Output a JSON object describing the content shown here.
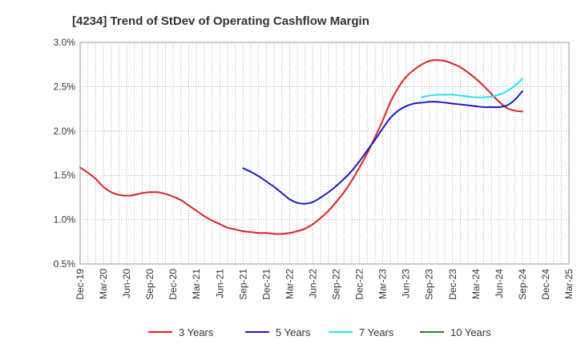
{
  "chart_data": {
    "type": "line",
    "title": "[4234]  Trend of StDev of Operating Cashflow Margin",
    "xlabel": "",
    "ylabel": "",
    "ylim": [
      0.5,
      3.0
    ],
    "yticks": [
      "0.5%",
      "1.0%",
      "1.5%",
      "2.0%",
      "2.5%",
      "3.0%"
    ],
    "ytick_values": [
      0.5,
      1.0,
      1.5,
      2.0,
      2.5,
      3.0
    ],
    "x_ticks": [
      "Dec-19",
      "Mar-20",
      "Jun-20",
      "Sep-20",
      "Dec-20",
      "Mar-21",
      "Jun-21",
      "Sep-21",
      "Dec-21",
      "Mar-22",
      "Jun-22",
      "Sep-22",
      "Dec-22",
      "Mar-23",
      "Jun-23",
      "Sep-23",
      "Dec-23",
      "Mar-24",
      "Jun-24",
      "Sep-24",
      "Dec-24",
      "Mar-25"
    ],
    "x_range": [
      "Dec-19",
      "Mar-25"
    ],
    "grid": true,
    "legend_position": "bottom",
    "series": [
      {
        "name": "3 Years",
        "color": "#e02020",
        "points": [
          [
            "Dec-19",
            1.59
          ],
          [
            "Jan-20",
            1.53
          ],
          [
            "Feb-20",
            1.46
          ],
          [
            "Mar-20",
            1.37
          ],
          [
            "Apr-20",
            1.31
          ],
          [
            "May-20",
            1.28
          ],
          [
            "Jun-20",
            1.27
          ],
          [
            "Jul-20",
            1.28
          ],
          [
            "Aug-20",
            1.3
          ],
          [
            "Sep-20",
            1.31
          ],
          [
            "Oct-20",
            1.31
          ],
          [
            "Nov-20",
            1.29
          ],
          [
            "Dec-20",
            1.26
          ],
          [
            "Jan-21",
            1.22
          ],
          [
            "Feb-21",
            1.16
          ],
          [
            "Mar-21",
            1.1
          ],
          [
            "Apr-21",
            1.04
          ],
          [
            "May-21",
            0.99
          ],
          [
            "Jun-21",
            0.95
          ],
          [
            "Jul-21",
            0.91
          ],
          [
            "Aug-21",
            0.89
          ],
          [
            "Sep-21",
            0.87
          ],
          [
            "Oct-21",
            0.86
          ],
          [
            "Nov-21",
            0.85
          ],
          [
            "Dec-21",
            0.85
          ],
          [
            "Jan-22",
            0.84
          ],
          [
            "Feb-22",
            0.84
          ],
          [
            "Mar-22",
            0.85
          ],
          [
            "Apr-22",
            0.87
          ],
          [
            "May-22",
            0.9
          ],
          [
            "Jun-22",
            0.95
          ],
          [
            "Jul-22",
            1.02
          ],
          [
            "Aug-22",
            1.1
          ],
          [
            "Sep-22",
            1.2
          ],
          [
            "Oct-22",
            1.31
          ],
          [
            "Nov-22",
            1.44
          ],
          [
            "Dec-22",
            1.59
          ],
          [
            "Jan-23",
            1.75
          ],
          [
            "Feb-23",
            1.93
          ],
          [
            "Mar-23",
            2.12
          ],
          [
            "Apr-23",
            2.33
          ],
          [
            "May-23",
            2.49
          ],
          [
            "Jun-23",
            2.61
          ],
          [
            "Jul-23",
            2.69
          ],
          [
            "Aug-23",
            2.75
          ],
          [
            "Sep-23",
            2.79
          ],
          [
            "Oct-23",
            2.8
          ],
          [
            "Nov-23",
            2.79
          ],
          [
            "Dec-23",
            2.76
          ],
          [
            "Jan-24",
            2.72
          ],
          [
            "Feb-24",
            2.66
          ],
          [
            "Mar-24",
            2.59
          ],
          [
            "Apr-24",
            2.51
          ],
          [
            "May-24",
            2.42
          ],
          [
            "Jun-24",
            2.33
          ],
          [
            "Jul-24",
            2.26
          ],
          [
            "Aug-24",
            2.23
          ],
          [
            "Sep-24",
            2.22
          ]
        ]
      },
      {
        "name": "5 Years",
        "color": "#1a1ac8",
        "points": [
          [
            "Sep-21",
            1.58
          ],
          [
            "Oct-21",
            1.54
          ],
          [
            "Nov-21",
            1.49
          ],
          [
            "Dec-21",
            1.43
          ],
          [
            "Jan-22",
            1.37
          ],
          [
            "Feb-22",
            1.3
          ],
          [
            "Mar-22",
            1.23
          ],
          [
            "Apr-22",
            1.19
          ],
          [
            "May-22",
            1.18
          ],
          [
            "Jun-22",
            1.2
          ],
          [
            "Jul-22",
            1.25
          ],
          [
            "Aug-22",
            1.31
          ],
          [
            "Sep-22",
            1.38
          ],
          [
            "Oct-22",
            1.46
          ],
          [
            "Nov-22",
            1.55
          ],
          [
            "Dec-22",
            1.66
          ],
          [
            "Jan-23",
            1.78
          ],
          [
            "Feb-23",
            1.9
          ],
          [
            "Mar-23",
            2.03
          ],
          [
            "Apr-23",
            2.15
          ],
          [
            "May-23",
            2.23
          ],
          [
            "Jun-23",
            2.28
          ],
          [
            "Jul-23",
            2.31
          ],
          [
            "Aug-23",
            2.32
          ],
          [
            "Sep-23",
            2.33
          ],
          [
            "Oct-23",
            2.33
          ],
          [
            "Nov-23",
            2.32
          ],
          [
            "Dec-23",
            2.31
          ],
          [
            "Jan-24",
            2.3
          ],
          [
            "Feb-24",
            2.29
          ],
          [
            "Mar-24",
            2.28
          ],
          [
            "Apr-24",
            2.27
          ],
          [
            "May-24",
            2.27
          ],
          [
            "Jun-24",
            2.27
          ],
          [
            "Jul-24",
            2.29
          ],
          [
            "Aug-24",
            2.35
          ],
          [
            "Sep-24",
            2.45
          ]
        ]
      },
      {
        "name": "7 Years",
        "color": "#20e8f0",
        "points": [
          [
            "Aug-23",
            2.38
          ],
          [
            "Sep-23",
            2.4
          ],
          [
            "Oct-23",
            2.41
          ],
          [
            "Nov-23",
            2.41
          ],
          [
            "Dec-23",
            2.41
          ],
          [
            "Jan-24",
            2.4
          ],
          [
            "Feb-24",
            2.39
          ],
          [
            "Mar-24",
            2.38
          ],
          [
            "Apr-24",
            2.38
          ],
          [
            "May-24",
            2.39
          ],
          [
            "Jun-24",
            2.41
          ],
          [
            "Jul-24",
            2.45
          ],
          [
            "Aug-24",
            2.51
          ],
          [
            "Sep-24",
            2.59
          ]
        ]
      },
      {
        "name": "10 Years",
        "color": "#1a8a1a",
        "points": []
      }
    ]
  }
}
